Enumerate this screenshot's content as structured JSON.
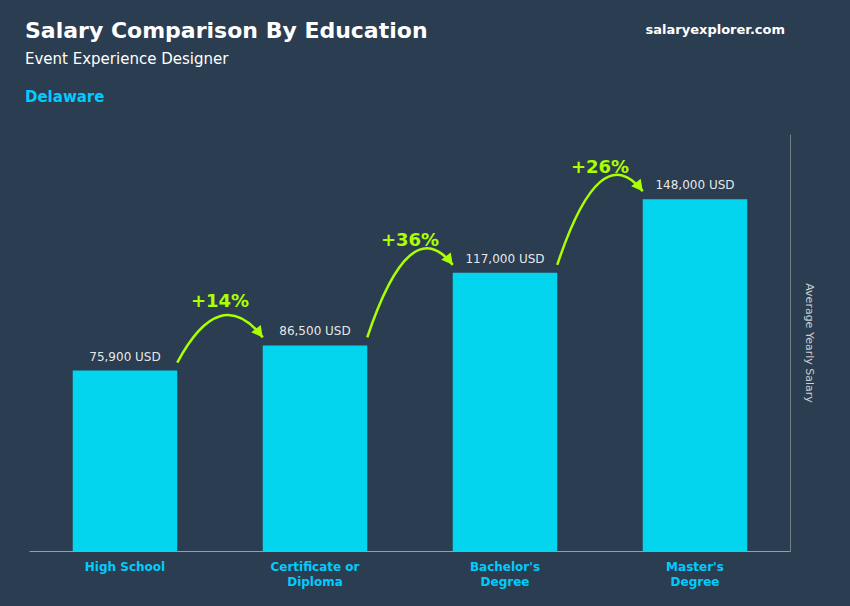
{
  "chart_data": {
    "type": "bar",
    "title": "Salary Comparison By Education",
    "subtitle": "Event Experience Designer",
    "location": "Delaware",
    "ylabel": "Average Yearly Salary",
    "categories": [
      "High School",
      "Certificate or\nDiploma",
      "Bachelor's\nDegree",
      "Master's\nDegree"
    ],
    "values": [
      75900,
      86500,
      117000,
      148000
    ],
    "value_labels": [
      "75,900 USD",
      "86,500 USD",
      "117,000 USD",
      "148,000 USD"
    ],
    "data_labels": true,
    "annotations": [
      "+14%",
      "+36%",
      "+26%"
    ],
    "watermark": "salaryexplorer.com",
    "color": "#00e5ff",
    "ylim": [
      0,
      175000
    ],
    "grid": false,
    "tick_labels": "x"
  }
}
